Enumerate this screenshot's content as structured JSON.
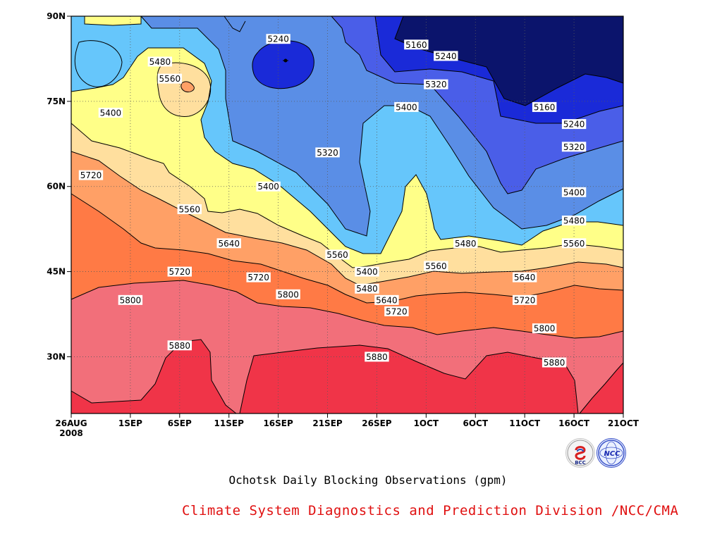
{
  "chart_data": {
    "type": "heatmap",
    "title": "Ochotsk Daily Blocking Observations (gpm)",
    "unit": "gpm",
    "x_ticks": [
      "26AUG\n2008",
      "1SEP",
      "6SEP",
      "11SEP",
      "16SEP",
      "21SEP",
      "26SEP",
      "1OCT",
      "6OCT",
      "11OCT",
      "16OCT",
      "21OCT"
    ],
    "y_ticks": [
      "30N",
      "45N",
      "60N",
      "75N",
      "90N"
    ],
    "xlim": [
      "2008-08-26",
      "2008-10-21"
    ],
    "ylim": [
      20,
      90
    ],
    "contour_levels": [
      5160,
      5240,
      5320,
      5400,
      5480,
      5560,
      5640,
      5720,
      5800,
      5880
    ],
    "fill_colors": {
      "below_5160": "#0b146c",
      "5160_5240": "#1a2ad8",
      "5240_5320": "#4a5ee8",
      "5320_5400": "#5a8ee6",
      "5400_5480": "#66c6fb",
      "5480_5560": "#ffff88",
      "5560_5640": "#ffdf9e",
      "5640_5720": "#ffa066",
      "5720_5800": "#ff7a45",
      "5800_5880": "#f26f7a",
      "above_5880": "#f03448"
    },
    "labeled_contours": [
      {
        "date": "2008-09-06",
        "lat": 45,
        "value": "5720"
      },
      {
        "date": "2008-08-28",
        "lat": 62,
        "value": "5720"
      },
      {
        "date": "2008-09-04",
        "lat": 82,
        "value": "5480"
      },
      {
        "date": "2008-09-05",
        "lat": 79,
        "value": "5560"
      },
      {
        "date": "2008-08-30",
        "lat": 73,
        "value": "5400"
      },
      {
        "date": "2008-09-16",
        "lat": 86,
        "value": "5240"
      },
      {
        "date": "2008-09-21",
        "lat": 66,
        "value": "5320"
      },
      {
        "date": "2008-09-15",
        "lat": 60,
        "value": "5400"
      },
      {
        "date": "2008-09-07",
        "lat": 56,
        "value": "5560"
      },
      {
        "date": "2008-09-11",
        "lat": 50,
        "value": "5640"
      },
      {
        "date": "2008-09-14",
        "lat": 44,
        "value": "5720"
      },
      {
        "date": "2008-09-17",
        "lat": 41,
        "value": "5800"
      },
      {
        "date": "2008-09-01",
        "lat": 40,
        "value": "5800"
      },
      {
        "date": "2008-09-06",
        "lat": 32,
        "value": "5880"
      },
      {
        "date": "2008-09-22",
        "lat": 48,
        "value": "5560"
      },
      {
        "date": "2008-09-25",
        "lat": 45,
        "value": "5400"
      },
      {
        "date": "2008-09-25",
        "lat": 42,
        "value": "5480"
      },
      {
        "date": "2008-09-27",
        "lat": 40,
        "value": "5640"
      },
      {
        "date": "2008-09-28",
        "lat": 38,
        "value": "5720"
      },
      {
        "date": "2008-09-26",
        "lat": 30,
        "value": "5880"
      },
      {
        "date": "2008-09-29",
        "lat": 74,
        "value": "5400"
      },
      {
        "date": "2008-09-30",
        "lat": 85,
        "value": "5160"
      },
      {
        "date": "2008-10-03",
        "lat": 83,
        "value": "5240"
      },
      {
        "date": "2008-10-02",
        "lat": 78,
        "value": "5320"
      },
      {
        "date": "2008-10-05",
        "lat": 50,
        "value": "5480"
      },
      {
        "date": "2008-10-02",
        "lat": 46,
        "value": "5560"
      },
      {
        "date": "2008-10-11",
        "lat": 44,
        "value": "5640"
      },
      {
        "date": "2008-10-11",
        "lat": 40,
        "value": "5720"
      },
      {
        "date": "2008-10-13",
        "lat": 35,
        "value": "5800"
      },
      {
        "date": "2008-10-14",
        "lat": 29,
        "value": "5880"
      },
      {
        "date": "2008-10-13",
        "lat": 74,
        "value": "5160"
      },
      {
        "date": "2008-10-16",
        "lat": 71,
        "value": "5240"
      },
      {
        "date": "2008-10-16",
        "lat": 67,
        "value": "5320"
      },
      {
        "date": "2008-10-16",
        "lat": 59,
        "value": "5400"
      },
      {
        "date": "2008-10-16",
        "lat": 54,
        "value": "5480"
      },
      {
        "date": "2008-10-16",
        "lat": 50,
        "value": "5560"
      }
    ]
  },
  "footer": {
    "credit": "Climate System Diagnostics and Prediction Division /NCC/CMA",
    "logo_left": "BCC",
    "logo_right": "NCC"
  }
}
